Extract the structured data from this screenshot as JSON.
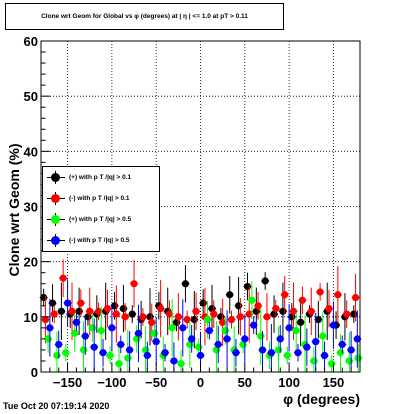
{
  "title": "Clone wrt Geom for Global vs φ (degrees) at | η | <= 1.0 at pT > 0.11",
  "timestamp": "Tue Oct 20 07:19:14 2020",
  "legend": [
    {
      "label": "(+) with p T /|q| > 0.1",
      "color": "#000000"
    },
    {
      "label": "(-) with p T /|q| > 0.1",
      "color": "#ff0000"
    },
    {
      "label": "(+) with p T /|q| > 0.5",
      "color": "#00ff00"
    },
    {
      "label": "(-) with p T /|q| > 0.5",
      "color": "#0000ff"
    }
  ],
  "chart_data": {
    "type": "scatter",
    "title": "Clone wrt Geom for Global vs φ (degrees) at | η | <= 1.0 at pT > 0.11",
    "xlabel": "φ (degrees)",
    "ylabel": "Clone wrt  Geom (%)",
    "xlim": [
      -180,
      180
    ],
    "ylim": [
      0,
      60
    ],
    "grid": true,
    "legend_position": "middle-left",
    "xticks": [
      -150,
      -100,
      -50,
      0,
      50,
      100,
      150
    ],
    "xtick_labels": [
      "−150",
      "−100",
      "−50",
      "0",
      "50",
      "100",
      "150"
    ],
    "yticks": [
      0,
      10,
      20,
      30,
      40,
      50,
      60
    ],
    "ytick_labels": [
      "0",
      "10",
      "20",
      "30",
      "40",
      "50",
      "60"
    ],
    "series": [
      {
        "name": "(+) with p T /|q| > 0.1",
        "color": "#000000",
        "x": [
          -177,
          -167,
          -157,
          -147,
          -137,
          -127,
          -117,
          -107,
          -97,
          -87,
          -77,
          -67,
          -57,
          -47,
          -37,
          -27,
          -17,
          -7,
          3,
          13,
          23,
          33,
          43,
          53,
          63,
          73,
          83,
          93,
          103,
          113,
          123,
          133,
          143,
          153,
          163,
          173
        ],
        "y": [
          13.5,
          12.5,
          11,
          10.5,
          11,
          10,
          10.5,
          11,
          12,
          11.5,
          10.5,
          9.5,
          10,
          12,
          11,
          9,
          16,
          9.5,
          12.5,
          11.5,
          10,
          14,
          12,
          15.5,
          11,
          16.5,
          10.5,
          11,
          10,
          9,
          10.5,
          9.5,
          11,
          8.5,
          10,
          10.5
        ]
      },
      {
        "name": "(-) with p T /|q| > 0.1",
        "color": "#ff0000",
        "x": [
          -175,
          -165,
          -155,
          -145,
          -135,
          -125,
          -115,
          -105,
          -95,
          -85,
          -75,
          -65,
          -55,
          -45,
          -35,
          -25,
          -15,
          -5,
          5,
          15,
          25,
          35,
          45,
          55,
          65,
          75,
          85,
          95,
          105,
          115,
          125,
          135,
          145,
          155,
          165,
          175
        ],
        "y": [
          9.5,
          10.5,
          17,
          11,
          12.5,
          11,
          11,
          11.5,
          10.5,
          10,
          16,
          10,
          9,
          11.5,
          10.5,
          10,
          9.5,
          11,
          10,
          10.5,
          9,
          9.5,
          10,
          10.5,
          12,
          10,
          11.5,
          14,
          11,
          13,
          11,
          14.5,
          11.5,
          14,
          10.5,
          13.5
        ]
      },
      {
        "name": "(+) with p T /|q| > 0.5",
        "color": "#00ff00",
        "x": [
          -172,
          -162,
          -152,
          -142,
          -132,
          -122,
          -112,
          -102,
          -92,
          -82,
          -72,
          -62,
          -52,
          -42,
          -32,
          -22,
          -12,
          -2,
          8,
          18,
          28,
          38,
          48,
          58,
          68,
          78,
          88,
          98,
          108,
          118,
          128,
          138,
          148,
          158,
          168,
          178
        ],
        "y": [
          6,
          3,
          3.5,
          7,
          4,
          8,
          7.5,
          3,
          1.5,
          2.5,
          6,
          4,
          7,
          3,
          8,
          1.5,
          5,
          4.5,
          9.5,
          4,
          7.5,
          4,
          5,
          13,
          6.5,
          3,
          4,
          3,
          7.5,
          5,
          2,
          6.5,
          1.5,
          3.5,
          2,
          2.5
        ]
      },
      {
        "name": "(-) with p T /|q| > 0.5",
        "color": "#0000ff",
        "x": [
          -170,
          -160,
          -150,
          -140,
          -130,
          -120,
          -110,
          -100,
          -90,
          -80,
          -70,
          -60,
          -50,
          -40,
          -30,
          -20,
          -10,
          0,
          10,
          20,
          30,
          40,
          50,
          60,
          70,
          80,
          90,
          100,
          110,
          120,
          130,
          140,
          150,
          160,
          170,
          177
        ],
        "y": [
          8,
          5,
          12.5,
          9,
          6.5,
          4.5,
          3.5,
          8,
          5,
          4,
          7,
          3,
          5.5,
          3.5,
          2,
          8,
          6,
          3,
          7.5,
          5,
          6,
          3.5,
          6,
          8.5,
          4,
          3.5,
          6,
          8,
          3.5,
          4.5,
          5.5,
          3,
          8.5,
          5,
          4,
          6
        ]
      }
    ]
  }
}
